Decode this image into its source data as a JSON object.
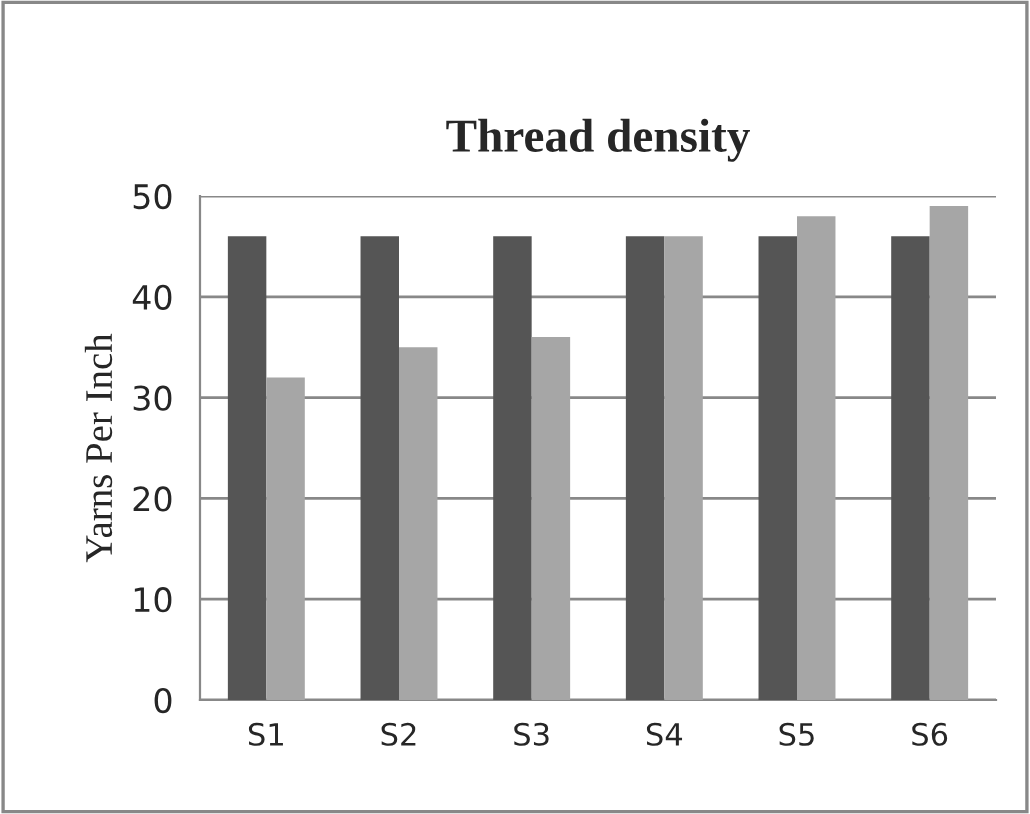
{
  "chart_data": {
    "type": "bar",
    "title": "Thread density",
    "ylabel": "Yarns Per Inch",
    "categories": [
      "S1",
      "S2",
      "S3",
      "S4",
      "S5",
      "S6"
    ],
    "series": [
      {
        "color": "#555555",
        "values": [
          46,
          46,
          46,
          46,
          46,
          46
        ]
      },
      {
        "color": "#a6a6a6",
        "values": [
          32,
          35,
          36,
          46,
          48,
          49
        ]
      }
    ],
    "ylim": [
      0,
      50
    ],
    "yticks": [
      0,
      10,
      20,
      30,
      40,
      50
    ],
    "grid": "y"
  }
}
